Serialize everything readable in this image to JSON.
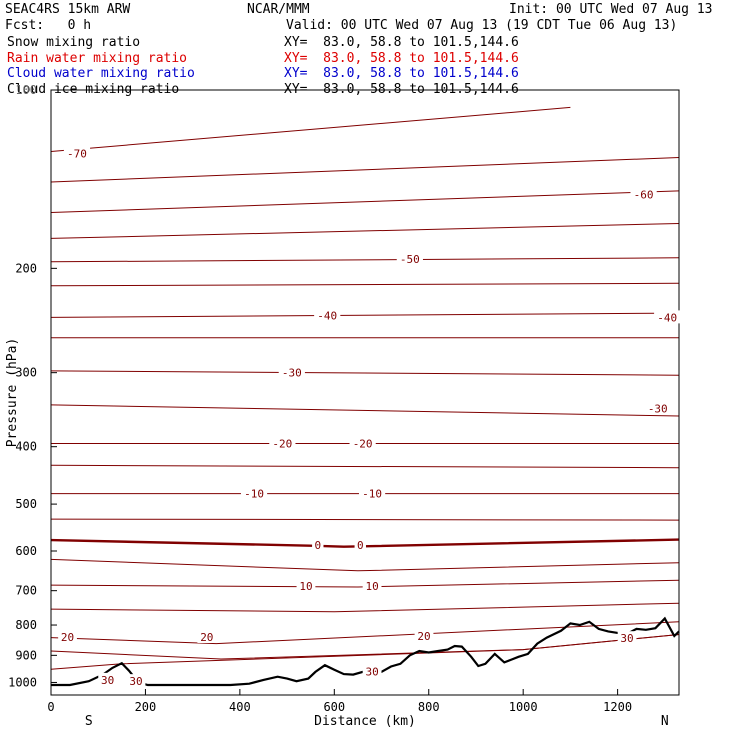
{
  "header": {
    "model": "SEAC4RS 15km ARW",
    "org": "NCAR/MMM",
    "init": "Init: 00 UTC Wed 07 Aug 13",
    "fcst": "Fcst:   0 h",
    "valid": "Valid: 00 UTC Wed 07 Aug 13 (19 CDT Tue 06 Aug 13)"
  },
  "legend": [
    {
      "name": "Snow mixing ratio",
      "xy": "XY=  83.0, 58.8 to 101.5,144.6",
      "color": "#000000"
    },
    {
      "name": "Rain water mixing ratio",
      "xy": "XY=  83.0, 58.8 to 101.5,144.6",
      "color": "#dd0000"
    },
    {
      "name": "Cloud water mixing ratio",
      "xy": "XY=  83.0, 58.8 to 101.5,144.6",
      "color": "#0000cc"
    },
    {
      "name": "Cloud ice mixing ratio",
      "xy": "XY=  83.0, 58.8 to 101.5,144.6",
      "color": "#000000"
    }
  ],
  "chart_data": {
    "type": "line",
    "xlabel": "Distance (km)",
    "ylabel": "Pressure (hPa)",
    "xlim": [
      0,
      1330
    ],
    "ylim": [
      1050,
      100
    ],
    "y_scale": "log",
    "x_ticks": [
      0,
      200,
      400,
      600,
      800,
      1000,
      1200
    ],
    "y_ticks": [
      200,
      300,
      400,
      500,
      600,
      700,
      800,
      900,
      1000
    ],
    "y_tick_top_label": "100",
    "endpoints": {
      "left": "S",
      "right": "N"
    },
    "contour_color": "#800000",
    "zero_line_color": "#800000",
    "temperature_contours": [
      {
        "level": -70,
        "x": [
          0,
          1100
        ],
        "p": [
          127,
          107
        ]
      },
      {
        "level": -65,
        "x": [
          0,
          1330
        ],
        "p": [
          143,
          130
        ]
      },
      {
        "level": -60,
        "x": [
          0,
          1330
        ],
        "p": [
          161,
          148
        ]
      },
      {
        "level": -55,
        "x": [
          0,
          1330
        ],
        "p": [
          178,
          168
        ]
      },
      {
        "level": -50,
        "x": [
          0,
          1330
        ],
        "p": [
          195,
          192
        ]
      },
      {
        "level": -45,
        "x": [
          0,
          1330
        ],
        "p": [
          214,
          212
        ]
      },
      {
        "level": -40,
        "x": [
          0,
          1330
        ],
        "p": [
          242,
          238
        ]
      },
      {
        "level": -35,
        "x": [
          0,
          1330
        ],
        "p": [
          262,
          262
        ]
      },
      {
        "level": -30,
        "x": [
          0,
          1330
        ],
        "p": [
          298,
          303
        ]
      },
      {
        "level": -25,
        "x": [
          0,
          1330
        ],
        "p": [
          340,
          355
        ]
      },
      {
        "level": -20,
        "x": [
          0,
          1330
        ],
        "p": [
          395,
          395
        ]
      },
      {
        "level": -15,
        "x": [
          0,
          1330
        ],
        "p": [
          430,
          434
        ]
      },
      {
        "level": -10,
        "x": [
          0,
          1330
        ],
        "p": [
          480,
          480
        ]
      },
      {
        "level": -5,
        "x": [
          0,
          1330
        ],
        "p": [
          530,
          532
        ]
      },
      {
        "level": 0,
        "x": [
          0,
          560,
          620,
          1330
        ],
        "p": [
          575,
          588,
          590,
          574
        ]
      },
      {
        "level": 5,
        "x": [
          0,
          650,
          1330
        ],
        "p": [
          620,
          648,
          628
        ]
      },
      {
        "level": 10,
        "x": [
          0,
          650,
          1330
        ],
        "p": [
          685,
          690,
          672
        ]
      },
      {
        "level": 15,
        "x": [
          0,
          600,
          1330
        ],
        "p": [
          752,
          760,
          735
        ]
      },
      {
        "level": 20,
        "x": [
          0,
          350,
          1330
        ],
        "p": [
          840,
          860,
          790
        ]
      },
      {
        "level": 25,
        "x": [
          0,
          360,
          1000,
          1330
        ],
        "p": [
          885,
          913,
          880,
          830
        ]
      },
      {
        "level": 30,
        "x": [
          0,
          150,
          1000,
          1330
        ],
        "p": [
          950,
          930,
          880,
          830
        ]
      }
    ],
    "labels": [
      {
        "text": "-70",
        "x": 55,
        "p": 128
      },
      {
        "text": "-60",
        "x": 1255,
        "p": 150
      },
      {
        "text": "-50",
        "x": 760,
        "p": 193
      },
      {
        "text": "-40",
        "x": 585,
        "p": 240
      },
      {
        "text": "-40",
        "x": 1305,
        "p": 242
      },
      {
        "text": "-30",
        "x": 510,
        "p": 300
      },
      {
        "text": "-30",
        "x": 1285,
        "p": 345
      },
      {
        "text": "-20",
        "x": 490,
        "p": 395
      },
      {
        "text": "-20",
        "x": 660,
        "p": 395
      },
      {
        "text": "-10",
        "x": 430,
        "p": 480
      },
      {
        "text": "-10",
        "x": 680,
        "p": 480
      },
      {
        "text": "0",
        "x": 565,
        "p": 586
      },
      {
        "text": "0",
        "x": 655,
        "p": 586
      },
      {
        "text": "10",
        "x": 540,
        "p": 688
      },
      {
        "text": "10",
        "x": 680,
        "p": 688
      },
      {
        "text": "20",
        "x": 35,
        "p": 838
      },
      {
        "text": "20",
        "x": 330,
        "p": 838
      },
      {
        "text": "20",
        "x": 790,
        "p": 835
      },
      {
        "text": "30",
        "x": 680,
        "p": 958
      },
      {
        "text": "30",
        "x": 120,
        "p": 990
      },
      {
        "text": "30",
        "x": 180,
        "p": 995
      },
      {
        "text": "30",
        "x": 1220,
        "p": 842
      }
    ],
    "terrain": {
      "x": [
        0,
        40,
        80,
        110,
        130,
        150,
        165,
        185,
        205,
        240,
        300,
        380,
        420,
        450,
        480,
        500,
        520,
        545,
        560,
        580,
        600,
        620,
        640,
        660,
        680,
        700,
        720,
        740,
        760,
        780,
        800,
        820,
        840,
        855,
        870,
        890,
        905,
        920,
        940,
        960,
        975,
        990,
        1010,
        1030,
        1050,
        1080,
        1100,
        1120,
        1140,
        1160,
        1180,
        1200,
        1220,
        1240,
        1260,
        1280,
        1300,
        1320,
        1330
      ],
      "p": [
        1010,
        1010,
        995,
        970,
        945,
        928,
        955,
        1000,
        1010,
        1010,
        1010,
        1010,
        1005,
        990,
        978,
        985,
        995,
        985,
        960,
        935,
        952,
        968,
        970,
        960,
        968,
        960,
        940,
        930,
        900,
        885,
        890,
        885,
        880,
        868,
        870,
        905,
        938,
        930,
        895,
        925,
        915,
        905,
        895,
        860,
        840,
        818,
        795,
        800,
        790,
        812,
        820,
        825,
        828,
        812,
        815,
        810,
        780,
        835,
        820
      ]
    }
  }
}
